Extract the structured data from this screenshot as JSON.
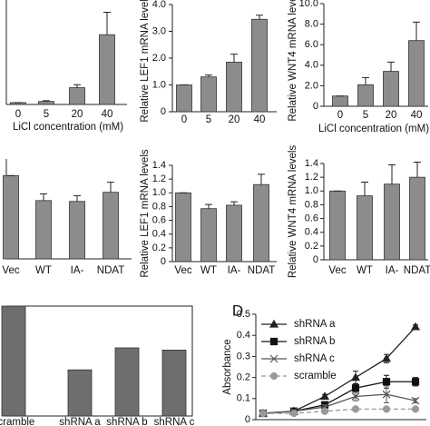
{
  "chart_data": [
    {
      "type": "bar",
      "categories": [
        "0",
        "5",
        "20",
        "40"
      ],
      "values": [
        0.05,
        0.08,
        0.45,
        1.87
      ],
      "errors": [
        0,
        0.02,
        0.08,
        0.6
      ],
      "color": "#8c8c8c",
      "ylim": [
        0,
        2.8
      ],
      "x_label": "LiCl concentration (mM)"
    },
    {
      "type": "bar",
      "categories": [
        "0",
        "5",
        "20",
        "40"
      ],
      "values": [
        1.0,
        1.3,
        1.85,
        3.45
      ],
      "errors": [
        0,
        0.07,
        0.3,
        0.15
      ],
      "color": "#8c8c8c",
      "ylim": [
        0,
        4
      ],
      "yticks": [
        0,
        {
          "value": 1,
          "label": "1.0"
        },
        {
          "value": 2,
          "label": "2.0"
        },
        {
          "value": 3,
          "label": "3.0"
        },
        {
          "value": 4,
          "label": "4.0"
        }
      ],
      "y_label": "Relative LEF1 mRNA levels"
    },
    {
      "type": "bar",
      "categories": [
        "0",
        "5",
        "20",
        "40"
      ],
      "values": [
        1.0,
        2.1,
        3.4,
        6.4
      ],
      "errors": [
        0,
        0.7,
        0.9,
        1.8
      ],
      "color": "#8c8c8c",
      "ylim": [
        0,
        10
      ],
      "yticks": [
        0,
        {
          "value": 2,
          "label": "2.0"
        },
        {
          "value": 4,
          "label": "4.0"
        },
        {
          "value": 6,
          "label": "6.0"
        },
        {
          "value": 8,
          "label": "8.0"
        },
        {
          "value": 10,
          "label": "10.0"
        }
      ],
      "y_label": "Relative WNT4 mRNA levels",
      "x_label": "LiCl concentration (mM)"
    },
    {
      "type": "bar",
      "categories": [
        "Vec",
        "WT",
        "IA-",
        "NDAT"
      ],
      "values": [
        1.0,
        0.7,
        0.69,
        0.8
      ],
      "errors": [
        0,
        0.08,
        0.07,
        0.12
      ],
      "color": "#8c8c8c",
      "ylim": [
        0,
        1.2
      ]
    },
    {
      "type": "bar",
      "categories": [
        "Vec",
        "WT",
        "IA-",
        "NDAT"
      ],
      "values": [
        1.0,
        0.77,
        0.82,
        1.12
      ],
      "errors": [
        0,
        0.06,
        0.05,
        0.15
      ],
      "color": "#8c8c8c",
      "ylim": [
        0,
        1.4
      ],
      "yticks": [
        0,
        0.2,
        0.4,
        0.6,
        0.8,
        {
          "value": 1,
          "label": "1.0"
        },
        1.2,
        1.4
      ],
      "y_label": "Relative LEF1 mRNA levels"
    },
    {
      "type": "bar",
      "categories": [
        "Vec",
        "WT",
        "IA-",
        "NDAT"
      ],
      "values": [
        1.0,
        0.93,
        1.1,
        1.2
      ],
      "errors": [
        0,
        0.2,
        0.28,
        0.22
      ],
      "color": "#8c8c8c",
      "ylim": [
        0,
        1.4
      ],
      "yticks": [
        0,
        0.2,
        0.4,
        0.6,
        0.8,
        {
          "value": 1,
          "label": "1.0"
        },
        1.2,
        1.4
      ],
      "y_label": "Relative WNT4 mRNA levels"
    },
    {
      "type": "bar",
      "categories": [
        "scramble",
        "shRNA a",
        "shRNA b",
        "shRNA c"
      ],
      "values": [
        1.0,
        0.42,
        0.62,
        0.6
      ],
      "color": "#6e6e6e",
      "ylim": [
        0,
        1
      ],
      "frame": true
    },
    {
      "type": "line",
      "panel_label": "D",
      "y_label": "Absorbance",
      "categories": [
        null,
        null,
        null,
        null,
        null,
        null
      ],
      "ylim": [
        0,
        0.5
      ],
      "yticks": [
        0,
        0.1,
        0.2,
        0.3,
        0.4,
        0.5
      ],
      "legend": "upper left",
      "series": [
        {
          "name": "shRNA a",
          "color": "#222222",
          "marker": "triangle",
          "dash": false,
          "values": [
            0.03,
            0.04,
            0.11,
            0.2,
            0.29,
            0.44
          ],
          "errors": [
            0,
            0.01,
            0.01,
            0.03,
            0.02,
            0.01
          ]
        },
        {
          "name": "shRNA b",
          "color": "#111111",
          "marker": "square",
          "dash": false,
          "values": [
            0.03,
            0.04,
            0.07,
            0.15,
            0.18,
            0.18
          ],
          "errors": [
            0,
            0.01,
            0.01,
            0.02,
            0.03,
            0.02
          ]
        },
        {
          "name": "shRNA c",
          "color": "#555555",
          "marker": "x",
          "dash": false,
          "values": [
            0.03,
            0.04,
            0.06,
            0.11,
            0.12,
            0.09
          ],
          "errors": [
            0,
            0,
            0.01,
            0.02,
            0.04,
            0.01
          ]
        },
        {
          "name": "scramble",
          "color": "#999999",
          "marker": "circle",
          "dash": true,
          "values": [
            0.03,
            0.03,
            0.04,
            0.05,
            0.05,
            0.05
          ]
        }
      ]
    }
  ]
}
